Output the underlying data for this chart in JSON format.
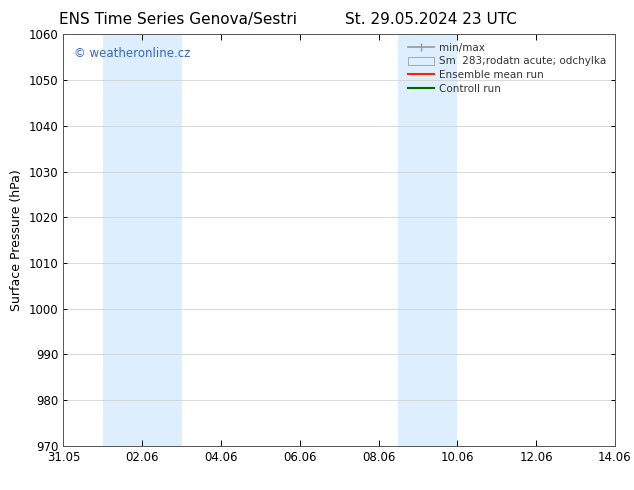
{
  "title_left": "ENS Time Series Genova/Sestri",
  "title_right": "St. 29.05.2024 23 UTC",
  "ylabel": "Surface Pressure (hPa)",
  "ylim": [
    970,
    1060
  ],
  "yticks": [
    970,
    980,
    990,
    1000,
    1010,
    1020,
    1030,
    1040,
    1050,
    1060
  ],
  "xlim": [
    0,
    14
  ],
  "xtick_labels": [
    "31.05",
    "02.06",
    "04.06",
    "06.06",
    "08.06",
    "10.06",
    "12.06",
    "14.06"
  ],
  "xtick_positions": [
    0,
    2,
    4,
    6,
    8,
    10,
    12,
    14
  ],
  "shaded_bands": [
    {
      "x_start": 1,
      "x_end": 3,
      "color": "#ddeeff"
    },
    {
      "x_start": 8.5,
      "x_end": 10,
      "color": "#ddeeff"
    }
  ],
  "watermark_text": "© weatheronline.cz",
  "watermark_color": "#3366cc",
  "legend_entries": [
    {
      "label": "min/max",
      "color": "#999999",
      "type": "hline"
    },
    {
      "label": "Sm  283;rodatn acute; odchylka",
      "color": "#ddeeff",
      "type": "box"
    },
    {
      "label": "Ensemble mean run",
      "color": "#ff2200",
      "type": "line"
    },
    {
      "label": "Controll run",
      "color": "#006600",
      "type": "line"
    }
  ],
  "bg_color": "#ffffff",
  "axis_color": "#555555",
  "grid_color": "#cccccc",
  "title_fontsize": 11,
  "label_fontsize": 9,
  "tick_fontsize": 8.5
}
